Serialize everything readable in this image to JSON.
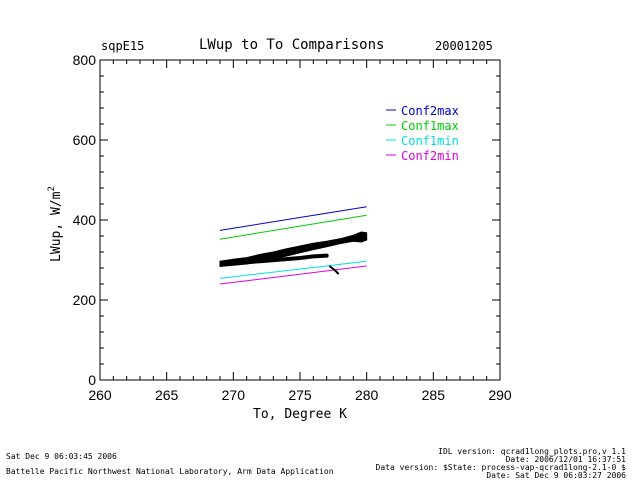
{
  "header": {
    "site": "sqpE15",
    "title": "LWup to To Comparisons",
    "date": "20001205"
  },
  "footer": {
    "left_line1": "Sat Dec  9 06:03:45 2006",
    "left_line2": "Battelle Pacific Northwest National Laboratory, Arm Data Application",
    "right_line1": "IDL version: qcrad1long_plots.pro,v 1.1",
    "right_line2": "Date: 2006/12/01 16:37:51",
    "right_line3": "Data version: $State: process-vap-qcrad1long-2.1-0 $",
    "right_line4": "Date: Sat Dec  9 06:03:27 2006"
  },
  "chart_data": {
    "type": "line",
    "xlabel": "To, Degree K",
    "ylabel_main": "LWup, W/m",
    "ylabel_sup": "2",
    "xlim": [
      260,
      290
    ],
    "ylim": [
      0,
      800
    ],
    "x_ticks": [
      260,
      265,
      270,
      275,
      280,
      285,
      290
    ],
    "y_ticks": [
      0,
      200,
      400,
      600,
      800
    ],
    "legend_position": "top-right",
    "series": [
      {
        "name": "Conf2max",
        "color": "#0000cc",
        "x": [
          269,
          280
        ],
        "y": [
          374,
          433
        ]
      },
      {
        "name": "Conf1max",
        "color": "#00cc00",
        "x": [
          269,
          280
        ],
        "y": [
          352,
          412
        ]
      },
      {
        "name": "Conf1min",
        "color": "#00e0e0",
        "x": [
          269,
          280
        ],
        "y": [
          254,
          297
        ]
      },
      {
        "name": "Conf2min",
        "color": "#e000e0",
        "x": [
          269,
          280
        ],
        "y": [
          240,
          285
        ]
      }
    ],
    "observations": {
      "color": "#000000",
      "band": [
        {
          "x": 269.0,
          "lo": 284,
          "hi": 297
        },
        {
          "x": 270.0,
          "lo": 287,
          "hi": 302
        },
        {
          "x": 271.0,
          "lo": 290,
          "hi": 306
        },
        {
          "x": 272.0,
          "lo": 296,
          "hi": 314
        },
        {
          "x": 273.0,
          "lo": 303,
          "hi": 320
        },
        {
          "x": 274.0,
          "lo": 310,
          "hi": 328
        },
        {
          "x": 275.0,
          "lo": 318,
          "hi": 335
        },
        {
          "x": 276.0,
          "lo": 326,
          "hi": 342
        },
        {
          "x": 277.0,
          "lo": 333,
          "hi": 347
        },
        {
          "x": 278.0,
          "lo": 341,
          "hi": 353
        },
        {
          "x": 279.0,
          "lo": 347,
          "hi": 362
        },
        {
          "x": 279.6,
          "lo": 345,
          "hi": 370
        },
        {
          "x": 280.0,
          "lo": 350,
          "hi": 368
        }
      ],
      "lower_branch": [
        {
          "x": 270.5,
          "y": 293
        },
        {
          "x": 272.0,
          "y": 297
        },
        {
          "x": 273.5,
          "y": 301
        },
        {
          "x": 275.0,
          "y": 305
        },
        {
          "x": 276.0,
          "y": 309
        },
        {
          "x": 277.0,
          "y": 311
        }
      ],
      "tail": [
        {
          "x": 277.2,
          "y": 285
        },
        {
          "x": 277.6,
          "y": 275
        },
        {
          "x": 277.9,
          "y": 265
        }
      ]
    }
  }
}
